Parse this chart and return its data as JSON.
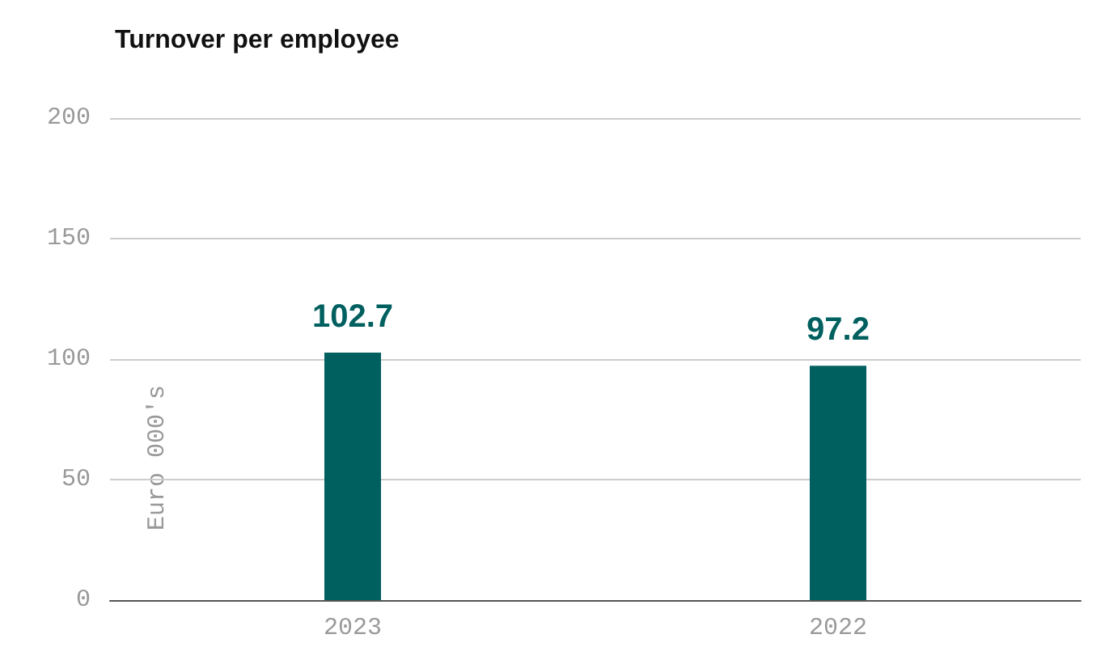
{
  "chart_data": {
    "type": "bar",
    "title": "Turnover per employee",
    "ylabel": "Euro 000's",
    "categories": [
      "2023",
      "2022"
    ],
    "series": [
      {
        "color": "#005f5f",
        "values": [
          102.7,
          97.2
        ]
      }
    ],
    "ylim": [
      0,
      200
    ],
    "yticks": [
      0,
      50,
      100,
      150,
      200
    ],
    "grid": "y",
    "data_labels": true
  }
}
